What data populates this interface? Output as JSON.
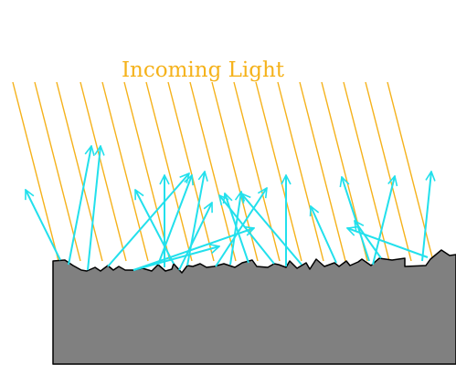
{
  "diagram": {
    "title": "Incoming Light",
    "colors": {
      "incoming_ray": "#f5b21b",
      "reflected_ray": "#22e0ec",
      "surface_fill": "#808080",
      "surface_stroke": "#000000",
      "title": "#f5b21b",
      "background": "#ffffff"
    }
  }
}
